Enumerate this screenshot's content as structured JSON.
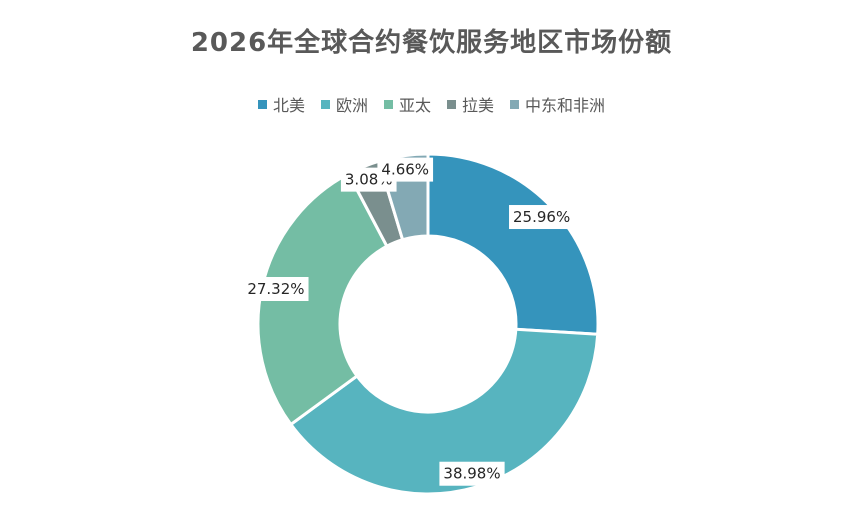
{
  "chart_data": {
    "type": "pie",
    "title": "2026年全球合约餐饮服务地区市场份额",
    "donut": true,
    "start_angle_deg": 0,
    "legend_position": "top",
    "categories": [
      "北美",
      "欧洲",
      "亚太",
      "拉美",
      "中东和非洲"
    ],
    "values": [
      25.96,
      38.98,
      27.32,
      3.08,
      4.66
    ],
    "labels": [
      "25.96%",
      "38.98%",
      "27.32%",
      "3.08%",
      "4.66%"
    ],
    "colors": [
      "#3594BC",
      "#57B4BF",
      "#74BDA4",
      "#7A8F8E",
      "#83A9B4"
    ]
  }
}
